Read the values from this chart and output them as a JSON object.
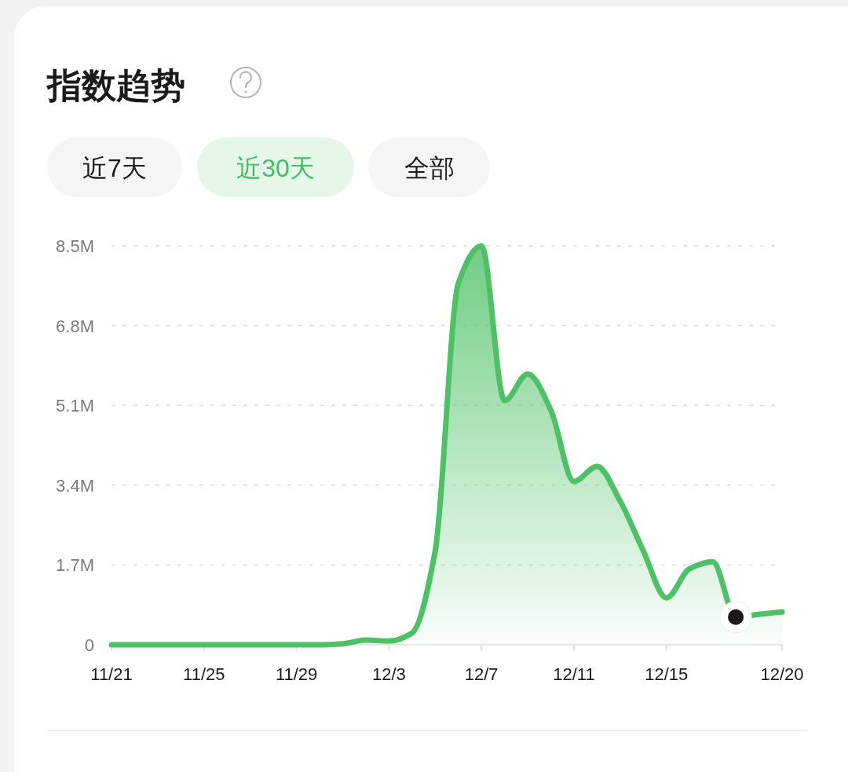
{
  "chart_data": {
    "type": "area",
    "title": "指数趋势",
    "annotations": [
      "近7天",
      "近30天",
      "全部"
    ],
    "x": [
      "--11-21",
      "--11-22",
      "--11-23",
      "--11-24",
      "--11-25",
      "--11-26",
      "--11-27",
      "--11-28",
      "--11-29",
      "--11-30",
      "--12-01",
      "--12-02",
      "--12-03",
      "--12-04",
      "--12-05",
      "--12-06",
      "--12-07",
      "--12-08",
      "--12-09",
      "--12-10",
      "--12-11",
      "--12-12",
      "--12-13",
      "--12-14",
      "--12-15",
      "--12-16",
      "--12-17",
      "--12-18",
      "--12-19",
      "--12-20"
    ],
    "series": [
      {
        "color": "#4cc165",
        "values": [
          0,
          0,
          0,
          0,
          0,
          0,
          0,
          0,
          0,
          0,
          0.02,
          0.1,
          0.08,
          0.25,
          2.0,
          7.7,
          8.5,
          5.2,
          5.77,
          5.0,
          3.48,
          3.8,
          3.06,
          2.0,
          1.0,
          1.62,
          1.77,
          0.59,
          0.65,
          0.7
        ]
      },
      {
        "type": "scatter",
        "marker": "circle",
        "color": "#1a1a1a",
        "x": [
          "--12-18"
        ],
        "values": [
          0.59
        ]
      }
    ],
    "xlim": [
      "--11-21",
      "--12-20"
    ],
    "xticks": [
      {
        "value": "--11-21",
        "label": "11/21"
      },
      {
        "value": "--11-25",
        "label": "11/25"
      },
      {
        "value": "--11-29",
        "label": "11/29"
      },
      {
        "value": "--12-03",
        "label": "12/3"
      },
      {
        "value": "--12-07",
        "label": "12/7"
      },
      {
        "value": "--12-11",
        "label": "12/11"
      },
      {
        "value": "--12-15",
        "label": "12/15"
      },
      {
        "value": "--12-20",
        "label": "12/20"
      }
    ],
    "ylim": [
      0,
      8.5
    ],
    "yticks": [
      {
        "value": 0,
        "label": "0"
      },
      {
        "value": 1.7,
        "label": "1.7M"
      },
      {
        "value": 3.4,
        "label": "3.4M"
      },
      {
        "value": 5.1,
        "label": "5.1M"
      },
      {
        "value": 6.8,
        "label": "6.8M"
      },
      {
        "value": 8.5,
        "label": "8.5M"
      }
    ],
    "grid": "y",
    "marker": "none",
    "line_style": "solid"
  }
}
